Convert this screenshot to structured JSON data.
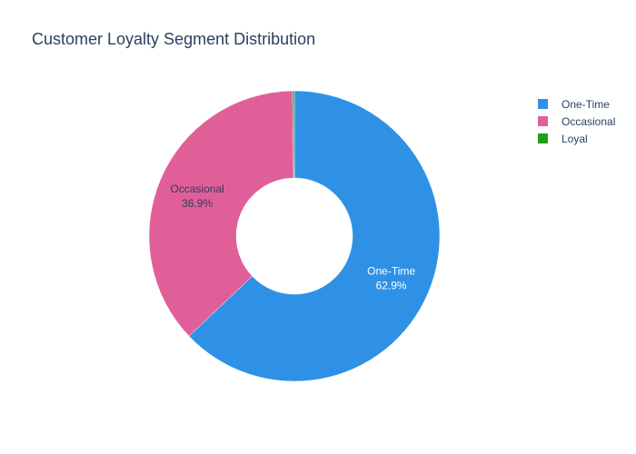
{
  "chart_data": {
    "type": "pie",
    "title": "Customer Loyalty Segment Distribution",
    "hole": true,
    "labels": [
      "One-Time",
      "Occasional",
      "Loyal"
    ],
    "values": [
      62.9,
      36.9,
      0.2
    ],
    "percent_labels": [
      "62.9%",
      "36.9%",
      ""
    ],
    "colors": [
      "#2f91e5",
      "#e15f99",
      "#1ca01c"
    ],
    "text_colors": [
      "#ffffff",
      "#2a3f5f",
      "#2a3f5f"
    ],
    "show_text": [
      true,
      true,
      false
    ],
    "legend_position": "top-right"
  }
}
